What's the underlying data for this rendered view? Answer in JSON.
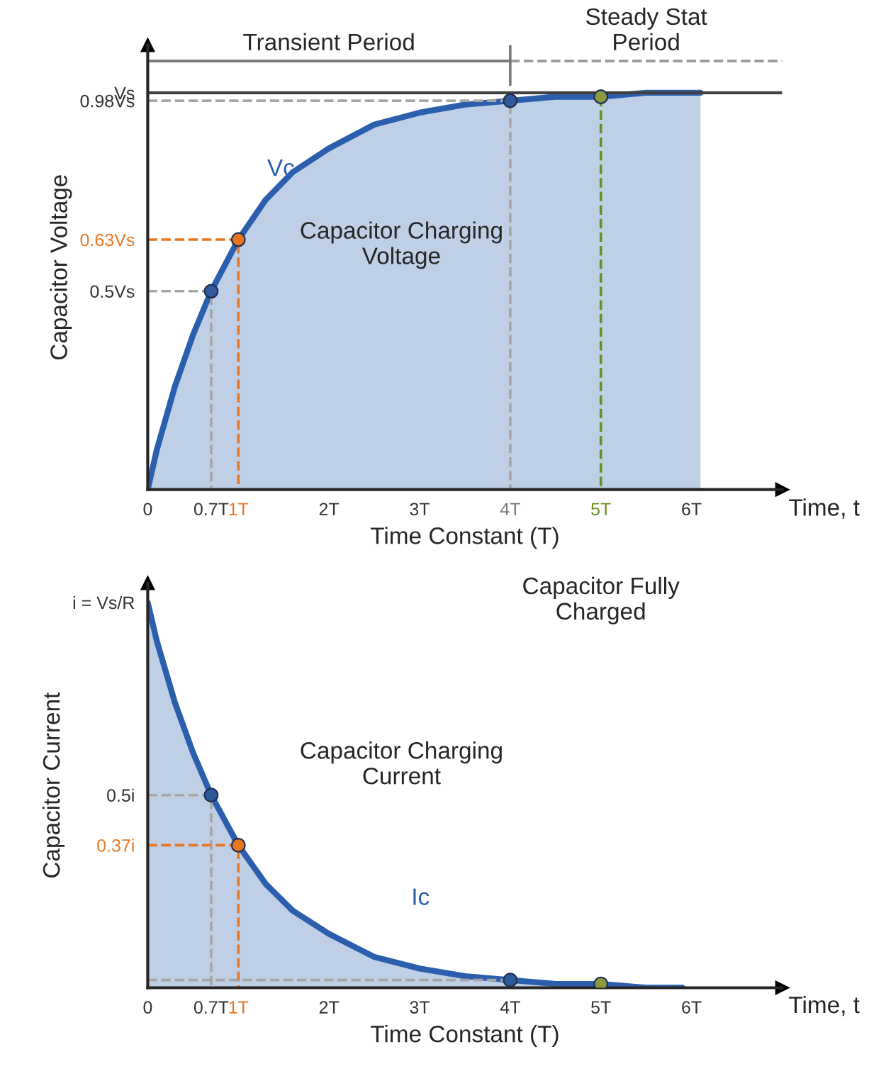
{
  "chart_data": [
    {
      "type": "area",
      "xlabel": "Time Constant (T)",
      "ylabel": "Capacitor Voltage",
      "xlim": [
        0,
        7
      ],
      "ylim": [
        0,
        1.12
      ],
      "xticks": [
        0,
        {
          "value": 0.7,
          "label": "0.7T"
        },
        {
          "value": 1,
          "label": "1T"
        },
        {
          "value": 2,
          "label": "2T"
        },
        {
          "value": 3,
          "label": "3T"
        },
        {
          "value": 4,
          "label": "4T"
        },
        {
          "value": 5,
          "label": "5T"
        },
        {
          "value": 6,
          "label": "6T"
        }
      ],
      "yticks": [
        {
          "value": 0.5,
          "label": "0.5Vs"
        },
        {
          "value": 0.63,
          "label": "0.63Vs"
        },
        {
          "value": 0.98,
          "label": "0.98Vs"
        },
        {
          "value": 1,
          "label": "Vs"
        }
      ],
      "series": [
        {
          "color": "#2b5fad",
          "x": [
            0,
            0.1,
            0.2,
            0.3,
            0.5,
            0.7,
            1,
            1.3,
            1.6,
            2,
            2.5,
            3,
            3.5,
            4,
            4.5,
            5,
            5.5,
            6.1
          ],
          "values": [
            0,
            0.1,
            0.18,
            0.26,
            0.39,
            0.5,
            0.63,
            0.73,
            0.8,
            0.86,
            0.92,
            0.95,
            0.97,
            0.98,
            0.99,
            0.99,
            1.0,
            1.0
          ]
        },
        {
          "type": "line",
          "color": "#a6a6a6",
          "line_style": "dashed",
          "x": [
            0,
            0.7,
            0.7
          ],
          "values": [
            0.5,
            0.5,
            0
          ]
        },
        {
          "type": "line",
          "color": "#e87722",
          "line_style": "dashed",
          "x": [
            0,
            1,
            1
          ],
          "values": [
            0.63,
            0.63,
            0
          ]
        },
        {
          "type": "line",
          "color": "#a6a6a6",
          "line_style": "dashed",
          "x": [
            0,
            4,
            4
          ],
          "values": [
            0.98,
            0.98,
            0
          ]
        },
        {
          "type": "line",
          "color": "#6b8e23",
          "line_style": "dashed",
          "x": [
            5,
            5
          ],
          "values": [
            0.99,
            0
          ]
        },
        {
          "type": "line",
          "color": "#777777",
          "line_style": "solid",
          "x": [
            0,
            4
          ],
          "values": [
            1.08,
            1.08
          ]
        },
        {
          "type": "line",
          "color": "#999999",
          "line_style": "dashed",
          "x": [
            4,
            7
          ],
          "values": [
            1.08,
            1.08
          ]
        },
        {
          "type": "line",
          "color": "#777777",
          "line_style": "solid",
          "x": [
            4,
            4
          ],
          "values": [
            1.02,
            1.12
          ]
        },
        {
          "type": "scatter",
          "colors": [
            "#2e5a9c",
            "#e87722",
            "#2e5a9c",
            "#8a9a3c"
          ],
          "x": [
            0.7,
            1,
            4,
            5
          ],
          "values": [
            0.5,
            0.63,
            0.98,
            0.99
          ]
        }
      ],
      "ref_lines": [
        {
          "axis": "y",
          "value": 1,
          "color": "#404040"
        }
      ],
      "annotations": [
        "Vc",
        "Capacitor Charging\nVoltage",
        "Time, t",
        "Capacitor Fully\nCharged",
        "Transient Period",
        "Steady Stat\nPeriod"
      ]
    },
    {
      "type": "area",
      "xlabel": "Time Constant (T)",
      "ylabel": "Capacitor Current",
      "xlim": [
        0,
        7
      ],
      "ylim": [
        0,
        1.05
      ],
      "xticks": [
        0,
        {
          "value": 0.7,
          "label": "0.7T"
        },
        {
          "value": 1,
          "label": "1T"
        },
        {
          "value": 2,
          "label": "2T"
        },
        {
          "value": 3,
          "label": "3T"
        },
        {
          "value": 4,
          "label": "4T"
        },
        {
          "value": 5,
          "label": "5T"
        },
        {
          "value": 6,
          "label": "6T"
        }
      ],
      "yticks": [
        {
          "value": 0.37,
          "label": "0.37i"
        },
        {
          "value": 0.5,
          "label": "0.5i"
        },
        {
          "value": 1,
          "label": "i = Vs/R"
        }
      ],
      "series": [
        {
          "color": "#2b5fad",
          "x": [
            0,
            0.1,
            0.2,
            0.3,
            0.5,
            0.7,
            1,
            1.3,
            1.6,
            2,
            2.5,
            3,
            3.5,
            4,
            4.5,
            5,
            5.5,
            5.9
          ],
          "values": [
            1,
            0.9,
            0.82,
            0.74,
            0.61,
            0.5,
            0.37,
            0.27,
            0.2,
            0.14,
            0.08,
            0.05,
            0.03,
            0.02,
            0.01,
            0.01,
            0,
            0
          ]
        },
        {
          "type": "line",
          "color": "#a6a6a6",
          "line_style": "dashed",
          "x": [
            0,
            0.7,
            0.7
          ],
          "values": [
            0.5,
            0.5,
            0
          ]
        },
        {
          "type": "line",
          "color": "#e87722",
          "line_style": "dashed",
          "x": [
            0,
            1,
            1
          ],
          "values": [
            0.37,
            0.37,
            0
          ]
        },
        {
          "type": "line",
          "color": "#a6a6a6",
          "line_style": "dashed",
          "x": [
            0,
            4
          ],
          "values": [
            0.02,
            0.02
          ]
        },
        {
          "type": "scatter",
          "colors": [
            "#2e5a9c",
            "#e87722",
            "#2e5a9c",
            "#8a9a3c"
          ],
          "x": [
            0.7,
            1,
            4,
            5
          ],
          "values": [
            0.5,
            0.37,
            0.02,
            0.01
          ]
        }
      ],
      "annotations": [
        "Capacitor Charging\nCurrent",
        "Ic",
        "Time, t"
      ]
    }
  ]
}
